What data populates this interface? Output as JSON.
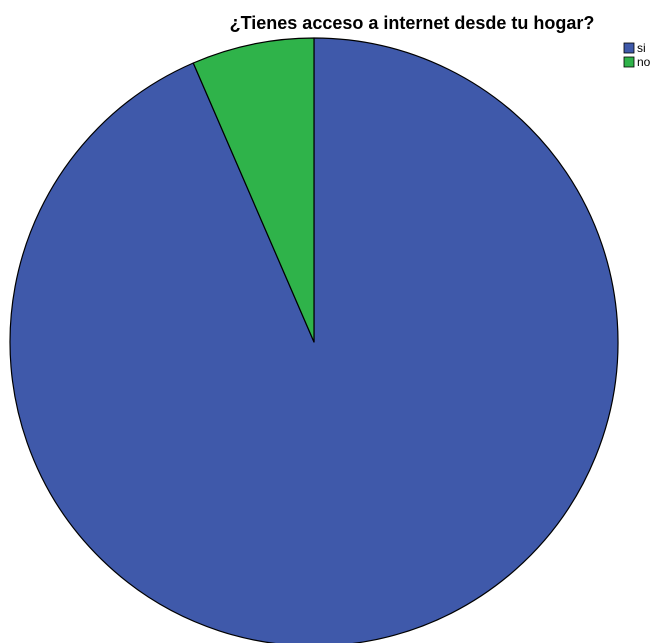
{
  "chart_data": {
    "type": "pie",
    "title": "¿Tienes acceso a internet desde tu hogar?",
    "categories": [
      "si",
      "no"
    ],
    "values": [
      93.5,
      6.5
    ],
    "colors": [
      "#3f59aa",
      "#2fb34a"
    ],
    "legend_position": "top-right"
  }
}
